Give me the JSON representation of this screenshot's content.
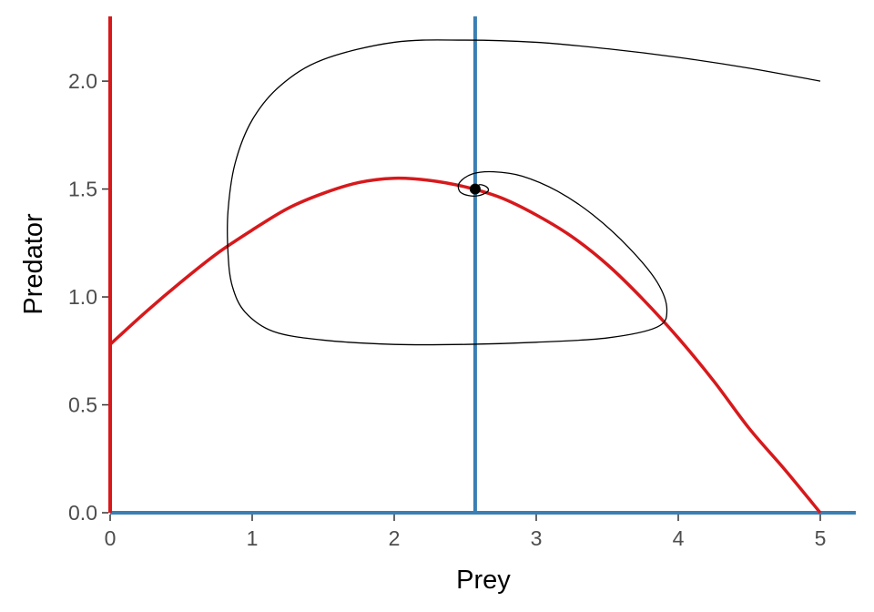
{
  "chart_data": {
    "type": "line",
    "title": "",
    "xlabel": "Prey",
    "ylabel": "Predator",
    "xlim": [
      0,
      5.25
    ],
    "ylim": [
      0,
      2.3
    ],
    "x_ticks": [
      0,
      1,
      2,
      3,
      4,
      5
    ],
    "y_ticks": [
      0.0,
      0.5,
      1.0,
      1.5,
      2.0
    ],
    "x_tick_labels": [
      "0",
      "1",
      "2",
      "3",
      "4",
      "5"
    ],
    "y_tick_labels": [
      "0.0",
      "0.5",
      "1.0",
      "1.5",
      "2.0"
    ],
    "grid": false,
    "legend": "none",
    "colors": {
      "prey_nullcline": "#d7191c",
      "predator_nullcline": "#3a7fb4",
      "trajectory": "#000000",
      "equilibrium": "#000000"
    },
    "prey_nullclines": {
      "vertical_x": 0,
      "curve": {
        "x": [
          0,
          0.25,
          0.5,
          0.75,
          1.0,
          1.25,
          1.5,
          1.75,
          2.0,
          2.25,
          2.5,
          2.75,
          3.0,
          3.25,
          3.5,
          3.75,
          4.0,
          4.25,
          4.5,
          4.75,
          5.0
        ],
        "y": [
          0.78,
          0.93,
          1.07,
          1.2,
          1.31,
          1.41,
          1.48,
          1.53,
          1.55,
          1.54,
          1.51,
          1.46,
          1.38,
          1.28,
          1.15,
          0.99,
          0.81,
          0.61,
          0.39,
          0.2,
          0.0
        ]
      }
    },
    "predator_nullclines": {
      "vertical_x": 2.57,
      "horizontal_y": 0
    },
    "equilibrium": {
      "x": 2.57,
      "y": 1.5
    },
    "trajectory": {
      "x": [
        5.0,
        4.5,
        4.0,
        3.5,
        3.0,
        2.5,
        2.0,
        1.5,
        1.2,
        1.0,
        0.88,
        0.83,
        0.83,
        0.86,
        0.95,
        1.15,
        1.5,
        2.0,
        2.5,
        3.0,
        3.5,
        3.85,
        3.92,
        3.85,
        3.65,
        3.4,
        3.15,
        2.9,
        2.7,
        2.55,
        2.46,
        2.46,
        2.52,
        2.6,
        2.66,
        2.65,
        2.6,
        2.57
      ],
      "y": [
        2.0,
        2.06,
        2.11,
        2.15,
        2.18,
        2.19,
        2.18,
        2.1,
        1.98,
        1.82,
        1.62,
        1.4,
        1.2,
        1.05,
        0.93,
        0.84,
        0.8,
        0.78,
        0.78,
        0.79,
        0.81,
        0.86,
        0.94,
        1.07,
        1.23,
        1.38,
        1.49,
        1.56,
        1.58,
        1.57,
        1.53,
        1.49,
        1.47,
        1.47,
        1.49,
        1.51,
        1.52,
        1.5
      ]
    }
  }
}
